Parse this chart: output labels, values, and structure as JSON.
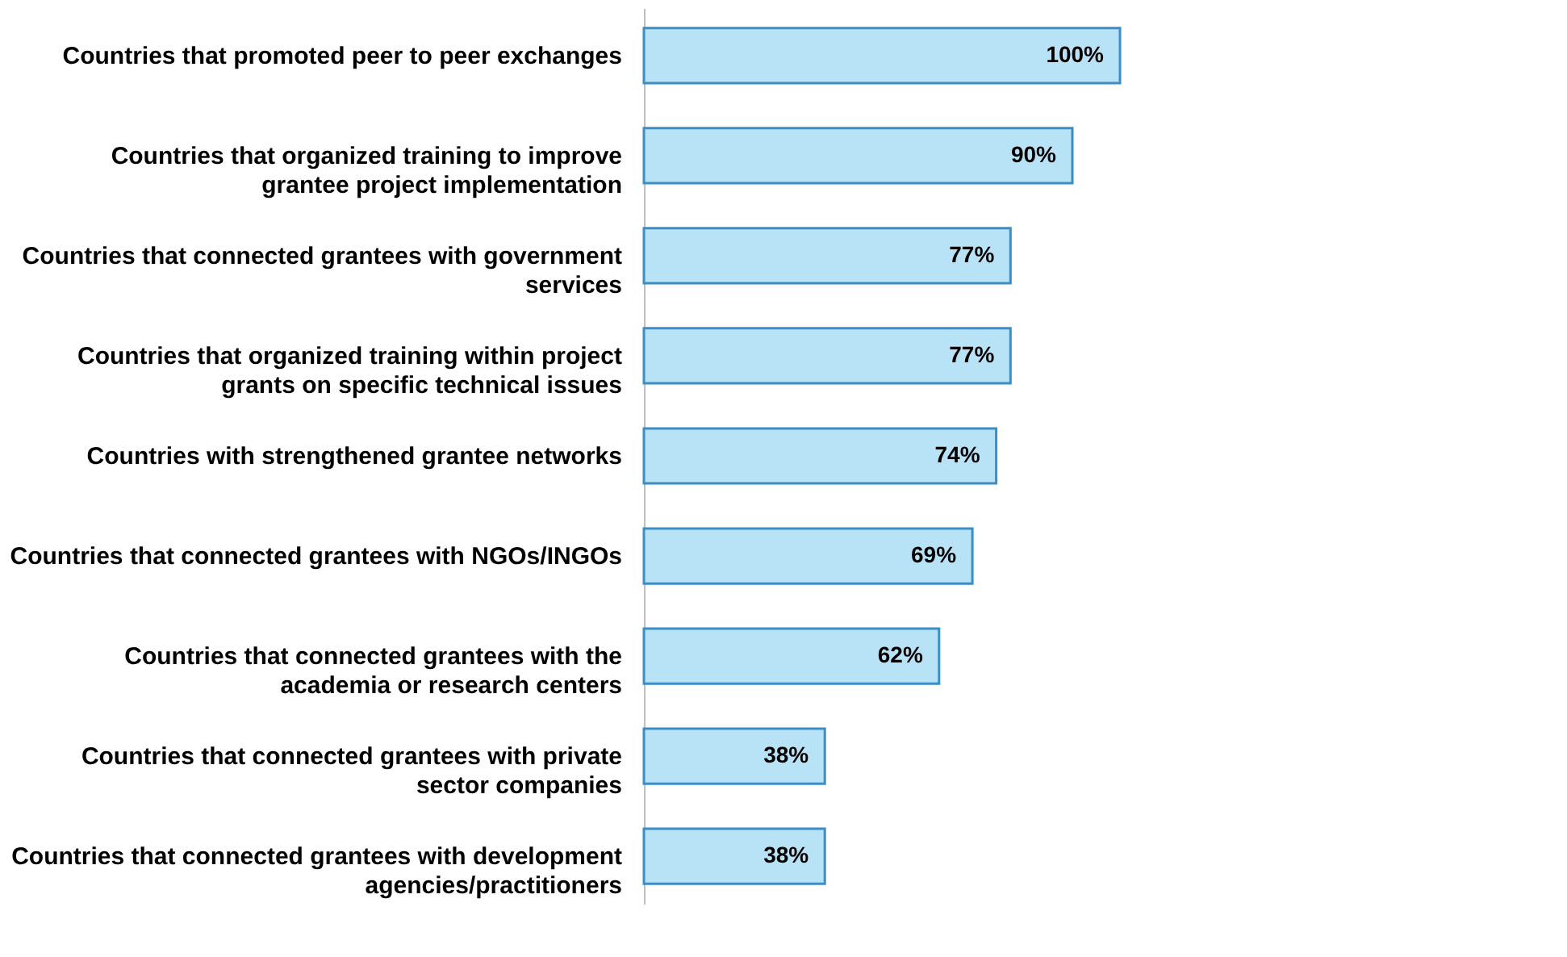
{
  "chart_data": {
    "type": "bar",
    "orientation": "horizontal",
    "categories": [
      "Countries that promoted peer to peer exchanges",
      "Countries that organized training  to improve grantee project implementation",
      "Countries that connected grantees with government services",
      "Countries that organized training within project grants on specific technical issues",
      "Countries with strengthened grantee networks",
      "Countries that connected grantees with NGOs/INGOs",
      "Countries that connected grantees with the academia or research centers",
      "Countries that connected grantees with private sector companies",
      "Countries that connected grantees with development agencies/practitioners"
    ],
    "values": [
      100,
      90,
      77,
      77,
      74,
      69,
      62,
      38,
      38
    ],
    "value_labels": [
      "100%",
      "90%",
      "77%",
      "77%",
      "74%",
      "69%",
      "62%",
      "38%",
      "38%"
    ],
    "color": "#b8e2f6"
  }
}
